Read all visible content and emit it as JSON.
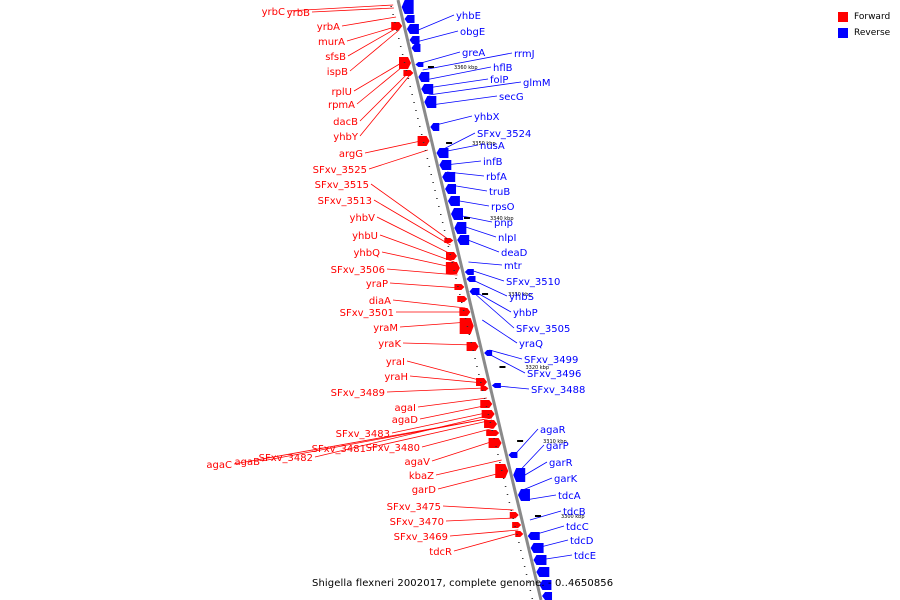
{
  "legend": {
    "forward_label": "Forward",
    "reverse_label": "Reverse",
    "forward_color": "#ff0000",
    "reverse_color": "#0000ff"
  },
  "caption": "Shigella flexneri 2002017, complete genome. - 0..4650856",
  "ticks": [
    {
      "label": "3360 kbp",
      "y": 67
    },
    {
      "label": "3350 kbp",
      "y": 143
    },
    {
      "label": "3340 kbp",
      "y": 218
    },
    {
      "label": "3330 kbp",
      "y": 294
    },
    {
      "label": "3320 kbp",
      "y": 367
    },
    {
      "label": "3310 kbp",
      "y": 441
    },
    {
      "label": "3300 kbp",
      "y": 516
    }
  ],
  "forward_genes": [
    "yrbC",
    "yrbB",
    "yrbA",
    "murA",
    "sfsB",
    "ispB",
    "rplU",
    "rpmA",
    "dacB",
    "yhbY",
    "argG",
    "SFxv_3525",
    "SFxv_3515",
    "SFxv_3513",
    "yhbV",
    "yhbU",
    "yhbQ",
    "SFxv_3506",
    "yraP",
    "diaA",
    "SFxv_3501",
    "yraM",
    "yraK",
    "yraI",
    "yraH",
    "SFxv_3489",
    "agaI",
    "agaD",
    "SFxv_3483",
    "SFxv_3481",
    "SFxv_3480",
    "agaV",
    "kbaZ",
    "garD",
    "SFxv_3475",
    "SFxv_3470",
    "SFxv_3469",
    "tdcR",
    "agaC",
    "agaB",
    "SFxv_3482"
  ],
  "reverse_genes": [
    "yhbE",
    "obgE",
    "greA",
    "rrmJ",
    "hflB",
    "folP",
    "glmM",
    "secG",
    "yhbX",
    "SFxv_3524",
    "nusA",
    "infB",
    "rbfA",
    "truB",
    "rpsO",
    "pnp",
    "nlpI",
    "deaD",
    "mtr",
    "SFxv_3510",
    "yhbS",
    "yhbP",
    "SFxv_3505",
    "yraQ",
    "SFxv_3499",
    "SFxv_3496",
    "SFxv_3488",
    "agaR",
    "garP",
    "garR",
    "garK",
    "tdcA",
    "tdcB",
    "tdcC",
    "tdcD",
    "tdcE"
  ]
}
